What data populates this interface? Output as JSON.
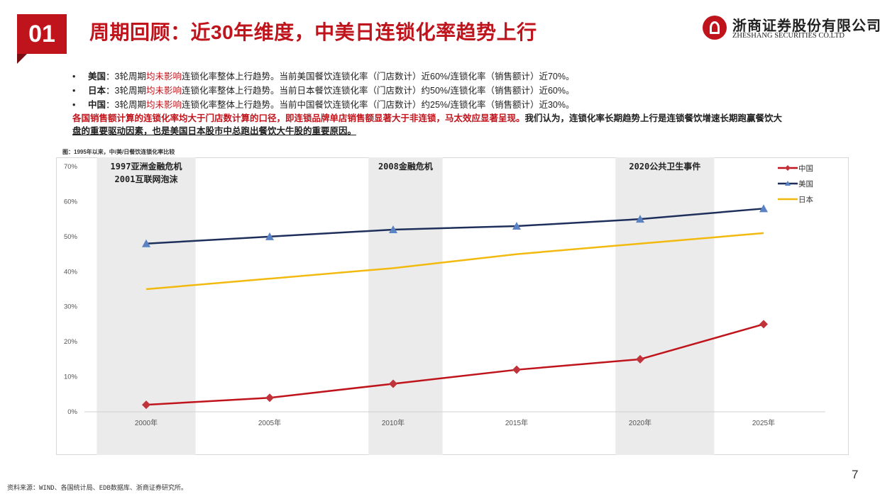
{
  "header": {
    "number": "01",
    "title": "周期回顾：近30年维度，中美日连锁化率趋势上行"
  },
  "logo": {
    "name_cn": "浙商证券股份有限公司",
    "name_en": "ZHESHANG SECURITIES CO.LTD"
  },
  "bullets": [
    {
      "country": "美国",
      "pre": "：3轮周期",
      "highlight": "均未影响",
      "post": "连锁化率整体上行趋势。当前美国餐饮连锁化率（门店数计）近60%/连锁化率（销售额计）近70%。"
    },
    {
      "country": "日本",
      "pre": "：3轮周期",
      "highlight": "均未影响",
      "post": "连锁化率整体上行趋势。当前日本餐饮连锁化率（门店数计）约50%/连锁化率（销售额计）近60%。"
    },
    {
      "country": "中国",
      "pre": "：3轮周期",
      "highlight": "均未影响",
      "post": "连锁化率整体上行趋势。当前中国餐饮连锁化率（门店数计）约25%/连锁化率（销售额计）近30%。"
    }
  ],
  "summary": {
    "red": "各国销售额计算的连锁化率均大于门店数计算的口径，即连锁品牌单店销售额显著大于非连锁，马太效应显著呈现。",
    "black_line1": "我们认为，连锁化率长期趋势上行是连锁餐饮增速长期跑赢餐饮大",
    "black_line2": "盘的重要驱动因素，也是美国日本股市中总跑出餐饮大牛股的重要原因。"
  },
  "chart_caption": "图：1995年以来，中/美/日餐饮连锁化率比较",
  "chart_data": {
    "type": "line",
    "x": [
      "2000年",
      "2005年",
      "2010年",
      "2015年",
      "2020年",
      "2025年"
    ],
    "ylim": [
      0,
      70
    ],
    "yticks": [
      "0%",
      "10%",
      "20%",
      "30%",
      "40%",
      "50%",
      "60%",
      "70%"
    ],
    "series": [
      {
        "name": "中国",
        "values": [
          2,
          4,
          8,
          12,
          15,
          25
        ],
        "color": "#c0141c",
        "marker": "diamond"
      },
      {
        "name": "美国",
        "values": [
          48,
          50,
          52,
          53,
          55,
          58
        ],
        "color": "#1f2f5c",
        "marker": "triangle"
      },
      {
        "name": "日本",
        "values": [
          35,
          38,
          41,
          45,
          48,
          51
        ],
        "color": "#f2b90f",
        "marker": "none"
      }
    ],
    "legend": "top-right",
    "grid": false,
    "shaded_periods": [
      {
        "x_range": [
          "1998年",
          "2002年"
        ],
        "label_lines": [
          "1997亚洲金融危机",
          "2001互联网泡沫"
        ]
      },
      {
        "x_range": [
          "2009年",
          "2012年"
        ],
        "label_lines": [
          "2008金融危机"
        ]
      },
      {
        "x_range": [
          "2019年",
          "2023年"
        ],
        "label_lines": [
          "2020公共卫生事件"
        ]
      }
    ]
  },
  "footer": {
    "source": "资料来源：WIND、各国统计局、EDB数据库、浙商证券研究所。",
    "page": "7"
  }
}
